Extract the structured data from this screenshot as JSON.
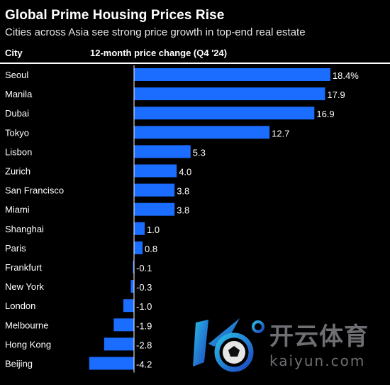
{
  "header": {
    "title": "Global Prime Housing Prices Rise",
    "subtitle": "Cities across Asia see strong price growth in top-end real estate",
    "col_city": "City",
    "col_change": "12-month price change (Q4 '24)"
  },
  "colors": {
    "background": "#000000",
    "bar": "#1a6dff",
    "text": "#ffffff"
  },
  "watermark": {
    "cn": "开云体育",
    "en": "kaiyun.com"
  },
  "chart_data": {
    "type": "bar",
    "orientation": "horizontal",
    "title": "Global Prime Housing Prices Rise",
    "subtitle": "Cities across Asia see strong price growth in top-end real estate",
    "xlabel": "12-month price change (Q4 '24)",
    "ylabel": "City",
    "categories": [
      "Seoul",
      "Manila",
      "Dubai",
      "Tokyo",
      "Lisbon",
      "Zurich",
      "San Francisco",
      "Miami",
      "Shanghai",
      "Paris",
      "Frankfurt",
      "New York",
      "London",
      "Melbourne",
      "Hong Kong",
      "Beijing"
    ],
    "values": [
      18.4,
      17.9,
      16.9,
      12.7,
      5.3,
      4.0,
      3.8,
      3.8,
      1.0,
      0.8,
      -0.1,
      -0.3,
      -1.0,
      -1.9,
      -2.8,
      -4.2
    ],
    "labels": [
      "18.4%",
      "17.9",
      "16.9",
      "12.7",
      "5.3",
      "4.0",
      "3.8",
      "3.8",
      "1.0",
      "0.8",
      "-0.1",
      "-0.3",
      "-1.0",
      "-1.9",
      "-2.8",
      "-4.2"
    ],
    "grid": false
  }
}
